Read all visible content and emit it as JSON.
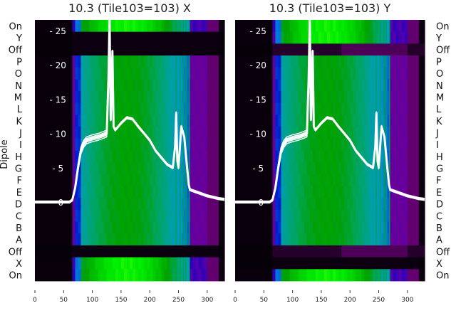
{
  "chart_data": {
    "type": "heatmap",
    "ylabel": "Dipole",
    "xlim": [
      0,
      330
    ],
    "xticks": [
      "0",
      "50",
      "100",
      "150",
      "200",
      "250",
      "300"
    ],
    "inner_ylim": [
      0,
      26
    ],
    "inner_yticks": [
      "0",
      "5",
      "10",
      "15",
      "20",
      "25"
    ],
    "panels": [
      {
        "title": "10.3 (Tile103=103) X",
        "rows": [
          {
            "label": "On",
            "level": "bright"
          },
          {
            "label": "Y",
            "level": "dark"
          },
          {
            "label": "Off",
            "level": "dark"
          },
          {
            "label": "P",
            "level": "mid"
          },
          {
            "label": "O",
            "level": "mid"
          },
          {
            "label": "N",
            "level": "mid"
          },
          {
            "label": "M",
            "level": "mid"
          },
          {
            "label": "L",
            "level": "mid"
          },
          {
            "label": "K",
            "level": "mid"
          },
          {
            "label": "J",
            "level": "mid"
          },
          {
            "label": "I",
            "level": "mid"
          },
          {
            "label": "H",
            "level": "mid"
          },
          {
            "label": "G",
            "level": "mid"
          },
          {
            "label": "F",
            "level": "mid"
          },
          {
            "label": "E",
            "level": "mid"
          },
          {
            "label": "D",
            "level": "mid"
          },
          {
            "label": "C",
            "level": "mid"
          },
          {
            "label": "B",
            "level": "mid"
          },
          {
            "label": "A",
            "level": "mid"
          },
          {
            "label": "Off",
            "level": "dark"
          },
          {
            "label": "X",
            "level": "bright"
          },
          {
            "label": "On",
            "level": "bright"
          }
        ]
      },
      {
        "title": "10.3 (Tile103=103) Y",
        "rows": [
          {
            "label": "On",
            "level": "bright"
          },
          {
            "label": "Y",
            "level": "bright"
          },
          {
            "label": "Off",
            "level": "dim"
          },
          {
            "label": "P",
            "level": "mid"
          },
          {
            "label": "O",
            "level": "mid"
          },
          {
            "label": "N",
            "level": "mid"
          },
          {
            "label": "M",
            "level": "mid"
          },
          {
            "label": "L",
            "level": "mid"
          },
          {
            "label": "K",
            "level": "mid"
          },
          {
            "label": "J",
            "level": "mid"
          },
          {
            "label": "I",
            "level": "mid"
          },
          {
            "label": "H",
            "level": "mid"
          },
          {
            "label": "G",
            "level": "mid"
          },
          {
            "label": "F",
            "level": "mid"
          },
          {
            "label": "E",
            "level": "mid"
          },
          {
            "label": "D",
            "level": "mid"
          },
          {
            "label": "C",
            "level": "mid"
          },
          {
            "label": "B",
            "level": "mid"
          },
          {
            "label": "A",
            "level": "mid"
          },
          {
            "label": "Off",
            "level": "dim"
          },
          {
            "label": "X",
            "level": "dark"
          },
          {
            "label": "On",
            "level": "bright"
          }
        ]
      }
    ],
    "line_series": {
      "name": "spectrum",
      "x": [
        0,
        60,
        65,
        70,
        75,
        80,
        85,
        90,
        100,
        110,
        120,
        125,
        128,
        130,
        132,
        135,
        137,
        140,
        150,
        160,
        170,
        180,
        190,
        200,
        210,
        220,
        230,
        240,
        244,
        246,
        248,
        250,
        255,
        260,
        265,
        268,
        270,
        280,
        290,
        300,
        310,
        320,
        330
      ],
      "y": [
        0,
        0,
        0.3,
        2,
        5,
        7.5,
        8.5,
        9,
        9.3,
        9.5,
        9.8,
        10,
        18,
        27,
        12,
        22,
        11,
        10.5,
        11.5,
        12.3,
        12.1,
        11,
        10,
        9,
        7.5,
        6.5,
        5.5,
        5,
        8,
        13,
        6,
        5,
        11,
        9.5,
        5,
        2.5,
        1.8,
        1.5,
        1.2,
        0.9,
        0.7,
        0.5,
        0.4
      ]
    }
  }
}
